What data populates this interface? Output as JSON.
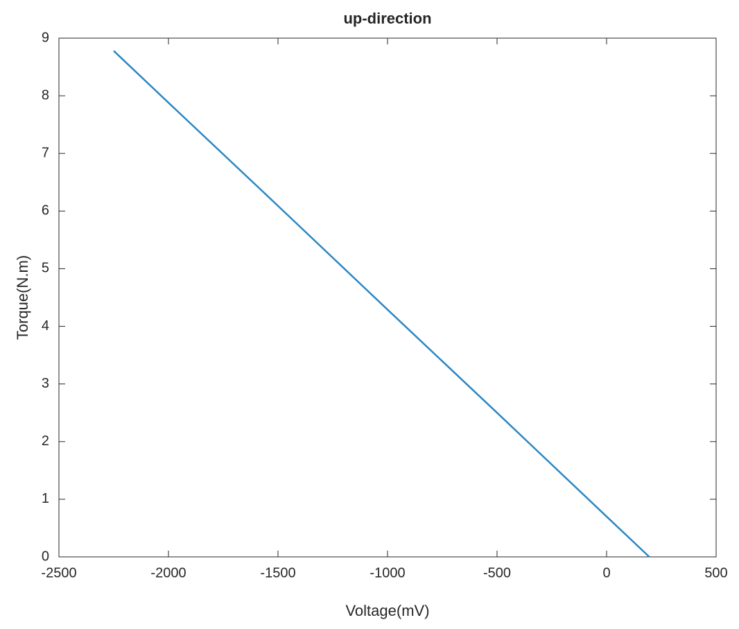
{
  "chart_data": {
    "type": "line",
    "title": "up-direction",
    "x_label": "Voltage(mV)",
    "y_label": "Torque(N.m)",
    "x": [
      -2250,
      -2000,
      -1500,
      -1000,
      -500,
      0,
      195
    ],
    "series": [
      {
        "color": "#2a86c4",
        "values": [
          8.78,
          7.88,
          6.09,
          4.29,
          2.5,
          0.7,
          0
        ]
      }
    ],
    "xlim": [
      -2500,
      500
    ],
    "xticks": [
      -2500,
      -2000,
      -1500,
      -1000,
      -500,
      0,
      500
    ],
    "ylim": [
      0,
      9
    ],
    "yticks": [
      0,
      1,
      2,
      3,
      4,
      5,
      6,
      7,
      8,
      9
    ]
  }
}
